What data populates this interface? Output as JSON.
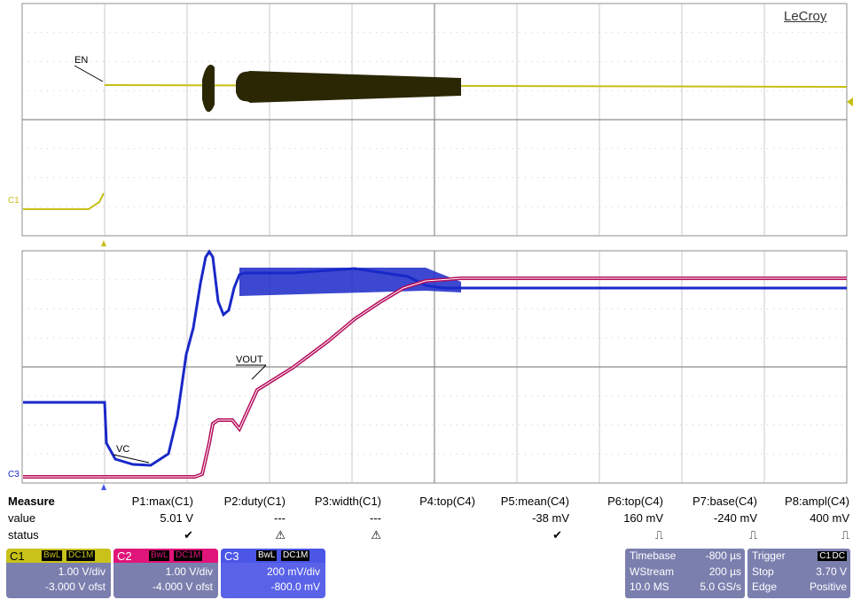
{
  "brand": "LeCroy",
  "scope": {
    "upper_labels": {
      "signal": "EN",
      "channel_marker": "C1"
    },
    "lower_labels": {
      "vout": "VOUT",
      "vc": "VC",
      "channel_marker": "C3"
    },
    "colors": {
      "c1_trace": "#c6bf14",
      "c1_burst": "#2b2705",
      "vout_trace": "#b40c5a",
      "vc_trace": "#1a28c8",
      "grid": "#bdbdbd",
      "frame": "#8c8c8c"
    }
  },
  "measurements": {
    "row_headers": {
      "title": "Measure",
      "value": "value",
      "status": "status"
    },
    "columns": [
      {
        "param": "P1:max(C1)",
        "value": "5.01 V",
        "status": "✔"
      },
      {
        "param": "P2:duty(C1)",
        "value": "---",
        "status": "⚠"
      },
      {
        "param": "P3:width(C1)",
        "value": "---",
        "status": "⚠"
      },
      {
        "param": "P4:top(C4)",
        "value": "",
        "status": ""
      },
      {
        "param": "P5:mean(C4)",
        "value": "-38 mV",
        "status": "✔"
      },
      {
        "param": "P6:top(C4)",
        "value": "160 mV",
        "status": "⎍"
      },
      {
        "param": "P7:base(C4)",
        "value": "-240 mV",
        "status": "⎍"
      },
      {
        "param": "P8:ampl(C4)",
        "value": "400 mV",
        "status": "⎍"
      }
    ]
  },
  "channels": [
    {
      "name": "C1",
      "bw": "BwL",
      "coupling": "DC1M",
      "scale": "1.00 V/div",
      "offset": "-3.000 V ofst",
      "color": "#c8c21a",
      "body": "#7b7fae"
    },
    {
      "name": "C2",
      "bw": "BwL",
      "coupling": "DC1M",
      "scale": "1.00 V/div",
      "offset": "-4.000 V ofst",
      "color": "#e0157a",
      "body": "#7b7fae"
    },
    {
      "name": "C3",
      "bw": "BwL",
      "coupling": "DC1M",
      "scale": "200 mV/div",
      "offset": "-800.0 mV",
      "color": "#4b55e6",
      "body": "#5a63e8"
    }
  ],
  "timebase": {
    "label": "Timebase",
    "value": "-800 µs",
    "mode": "WStream",
    "per_div": "200 µs",
    "samples": "10.0 MS",
    "rate": "5.0 GS/s"
  },
  "trigger": {
    "label": "Trigger",
    "source": "C1",
    "coupling": "DC",
    "state": "Stop",
    "level": "3.70 V",
    "type": "Edge",
    "slope": "Positive"
  }
}
